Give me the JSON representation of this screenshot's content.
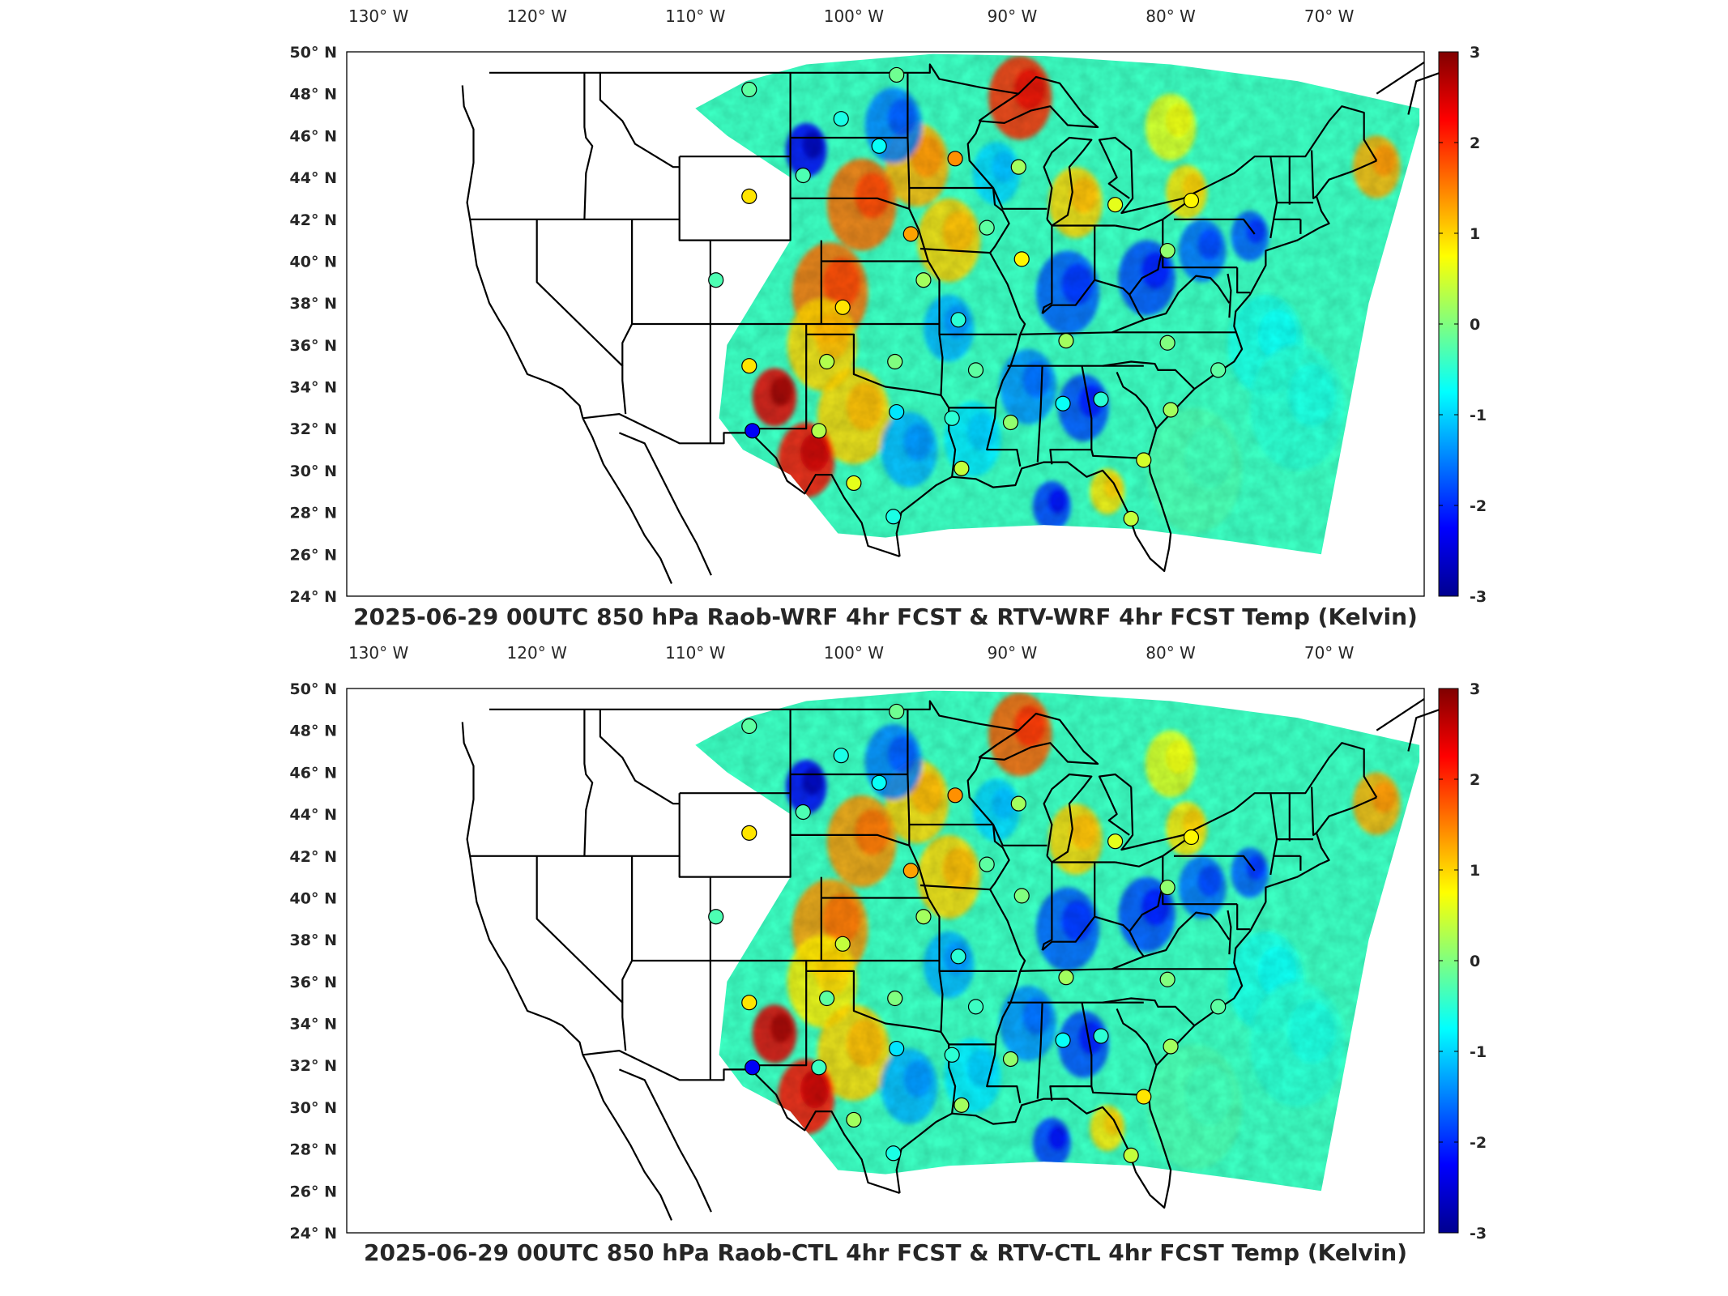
{
  "figure": {
    "panels": [
      {
        "title": "2025-06-29 00UTC 850 hPa Raob-WRF 4hr FCST & RTV-WRF 4hr FCST Temp (Kelvin)",
        "raob_points": [
          {
            "lon": -106.6,
            "lat": 48.2,
            "value": -0.2
          },
          {
            "lon": -97.3,
            "lat": 48.9,
            "value": -0.1
          },
          {
            "lon": -100.8,
            "lat": 46.8,
            "value": -0.6
          },
          {
            "lon": -98.4,
            "lat": 45.5,
            "value": -0.7
          },
          {
            "lon": -103.2,
            "lat": 44.1,
            "value": -0.3
          },
          {
            "lon": -93.6,
            "lat": 44.9,
            "value": 1.4
          },
          {
            "lon": -89.6,
            "lat": 44.5,
            "value": 0.2
          },
          {
            "lon": -106.6,
            "lat": 43.1,
            "value": 0.9
          },
          {
            "lon": -83.5,
            "lat": 42.7,
            "value": 0.6
          },
          {
            "lon": -78.7,
            "lat": 42.9,
            "value": 0.8
          },
          {
            "lon": -96.4,
            "lat": 41.3,
            "value": 1.3
          },
          {
            "lon": -91.6,
            "lat": 41.6,
            "value": -0.2
          },
          {
            "lon": -89.4,
            "lat": 40.1,
            "value": 0.8
          },
          {
            "lon": -80.2,
            "lat": 40.5,
            "value": 0.1
          },
          {
            "lon": -108.7,
            "lat": 39.1,
            "value": -0.3
          },
          {
            "lon": -95.6,
            "lat": 39.1,
            "value": 0.2
          },
          {
            "lon": -100.7,
            "lat": 37.8,
            "value": 0.9
          },
          {
            "lon": -93.4,
            "lat": 37.2,
            "value": -0.5
          },
          {
            "lon": -86.6,
            "lat": 36.2,
            "value": 0.2
          },
          {
            "lon": -80.2,
            "lat": 36.1,
            "value": 0.0
          },
          {
            "lon": -106.6,
            "lat": 35.0,
            "value": 0.9
          },
          {
            "lon": -101.7,
            "lat": 35.2,
            "value": 0.3
          },
          {
            "lon": -97.4,
            "lat": 35.2,
            "value": 0.0
          },
          {
            "lon": -92.3,
            "lat": 34.8,
            "value": -0.2
          },
          {
            "lon": -97.3,
            "lat": 32.8,
            "value": -0.9
          },
          {
            "lon": -93.8,
            "lat": 32.5,
            "value": -0.5
          },
          {
            "lon": -90.1,
            "lat": 32.3,
            "value": 0.1
          },
          {
            "lon": -86.8,
            "lat": 33.2,
            "value": -0.7
          },
          {
            "lon": -84.4,
            "lat": 33.4,
            "value": -0.5
          },
          {
            "lon": -80.0,
            "lat": 32.9,
            "value": 0.2
          },
          {
            "lon": -106.4,
            "lat": 31.9,
            "value": -2.3
          },
          {
            "lon": -102.2,
            "lat": 31.9,
            "value": 0.3
          },
          {
            "lon": -100.0,
            "lat": 29.4,
            "value": 0.6
          },
          {
            "lon": -93.2,
            "lat": 30.1,
            "value": 0.4
          },
          {
            "lon": -97.5,
            "lat": 27.8,
            "value": -0.6
          },
          {
            "lon": -81.7,
            "lat": 30.5,
            "value": 0.5
          },
          {
            "lon": -82.5,
            "lat": 27.7,
            "value": 0.4
          },
          {
            "lon": -77.0,
            "lat": 34.8,
            "value": -0.2
          }
        ]
      },
      {
        "title": "2025-06-29 00UTC 850 hPa Raob-CTL 4hr FCST & RTV-CTL 4hr FCST Temp (Kelvin)",
        "raob_points": [
          {
            "lon": -106.6,
            "lat": 48.2,
            "value": -0.2
          },
          {
            "lon": -97.3,
            "lat": 48.9,
            "value": -0.1
          },
          {
            "lon": -100.8,
            "lat": 46.8,
            "value": -0.6
          },
          {
            "lon": -98.4,
            "lat": 45.5,
            "value": -0.7
          },
          {
            "lon": -103.2,
            "lat": 44.1,
            "value": -0.3
          },
          {
            "lon": -93.6,
            "lat": 44.9,
            "value": 1.4
          },
          {
            "lon": -89.6,
            "lat": 44.5,
            "value": 0.2
          },
          {
            "lon": -106.6,
            "lat": 43.1,
            "value": 0.9
          },
          {
            "lon": -83.5,
            "lat": 42.7,
            "value": 0.6
          },
          {
            "lon": -78.7,
            "lat": 42.9,
            "value": 0.8
          },
          {
            "lon": -96.4,
            "lat": 41.3,
            "value": 1.3
          },
          {
            "lon": -91.6,
            "lat": 41.6,
            "value": -0.2
          },
          {
            "lon": -89.4,
            "lat": 40.1,
            "value": 0.0
          },
          {
            "lon": -80.2,
            "lat": 40.5,
            "value": 0.1
          },
          {
            "lon": -108.7,
            "lat": 39.1,
            "value": -0.3
          },
          {
            "lon": -95.6,
            "lat": 39.1,
            "value": 0.2
          },
          {
            "lon": -100.7,
            "lat": 37.8,
            "value": 0.4
          },
          {
            "lon": -93.4,
            "lat": 37.2,
            "value": -0.5
          },
          {
            "lon": -86.6,
            "lat": 36.2,
            "value": 0.2
          },
          {
            "lon": -80.2,
            "lat": 36.1,
            "value": 0.0
          },
          {
            "lon": -106.6,
            "lat": 35.0,
            "value": 0.9
          },
          {
            "lon": -101.7,
            "lat": 35.2,
            "value": -0.2
          },
          {
            "lon": -97.4,
            "lat": 35.2,
            "value": 0.0
          },
          {
            "lon": -92.3,
            "lat": 34.8,
            "value": -0.4
          },
          {
            "lon": -97.3,
            "lat": 32.8,
            "value": -0.9
          },
          {
            "lon": -93.8,
            "lat": 32.5,
            "value": -0.5
          },
          {
            "lon": -90.1,
            "lat": 32.3,
            "value": 0.1
          },
          {
            "lon": -86.8,
            "lat": 33.2,
            "value": -0.7
          },
          {
            "lon": -84.4,
            "lat": 33.4,
            "value": -0.5
          },
          {
            "lon": -80.0,
            "lat": 32.9,
            "value": 0.2
          },
          {
            "lon": -106.4,
            "lat": 31.9,
            "value": -2.3
          },
          {
            "lon": -102.2,
            "lat": 31.9,
            "value": -0.4
          },
          {
            "lon": -100.0,
            "lat": 29.4,
            "value": 0.2
          },
          {
            "lon": -93.2,
            "lat": 30.1,
            "value": 0.2
          },
          {
            "lon": -97.5,
            "lat": 27.8,
            "value": -0.6
          },
          {
            "lon": -81.7,
            "lat": 30.5,
            "value": 0.9
          },
          {
            "lon": -82.5,
            "lat": 27.7,
            "value": 0.4
          },
          {
            "lon": -77.0,
            "lat": 34.8,
            "value": -0.2
          }
        ]
      }
    ],
    "lon_ticks": [
      "130° W",
      "120° W",
      "110° W",
      "100° W",
      "90° W",
      "80° W",
      "70° W"
    ],
    "lat_ticks": [
      "24° N",
      "26° N",
      "28° N",
      "30° N",
      "32° N",
      "34° N",
      "36° N",
      "38° N",
      "40° N",
      "42° N",
      "44° N",
      "46° N",
      "48° N",
      "50° N"
    ],
    "colorbar": {
      "min": -3,
      "max": 3,
      "ticks": [
        "3",
        "2",
        "1",
        "0",
        "-1",
        "-2",
        "-3"
      ],
      "colormap": "jet"
    },
    "map": {
      "lon_range": [
        -132,
        -64
      ],
      "lat_range": [
        24,
        50
      ],
      "land_color": "#ffffff",
      "border_color": "#000000"
    }
  }
}
